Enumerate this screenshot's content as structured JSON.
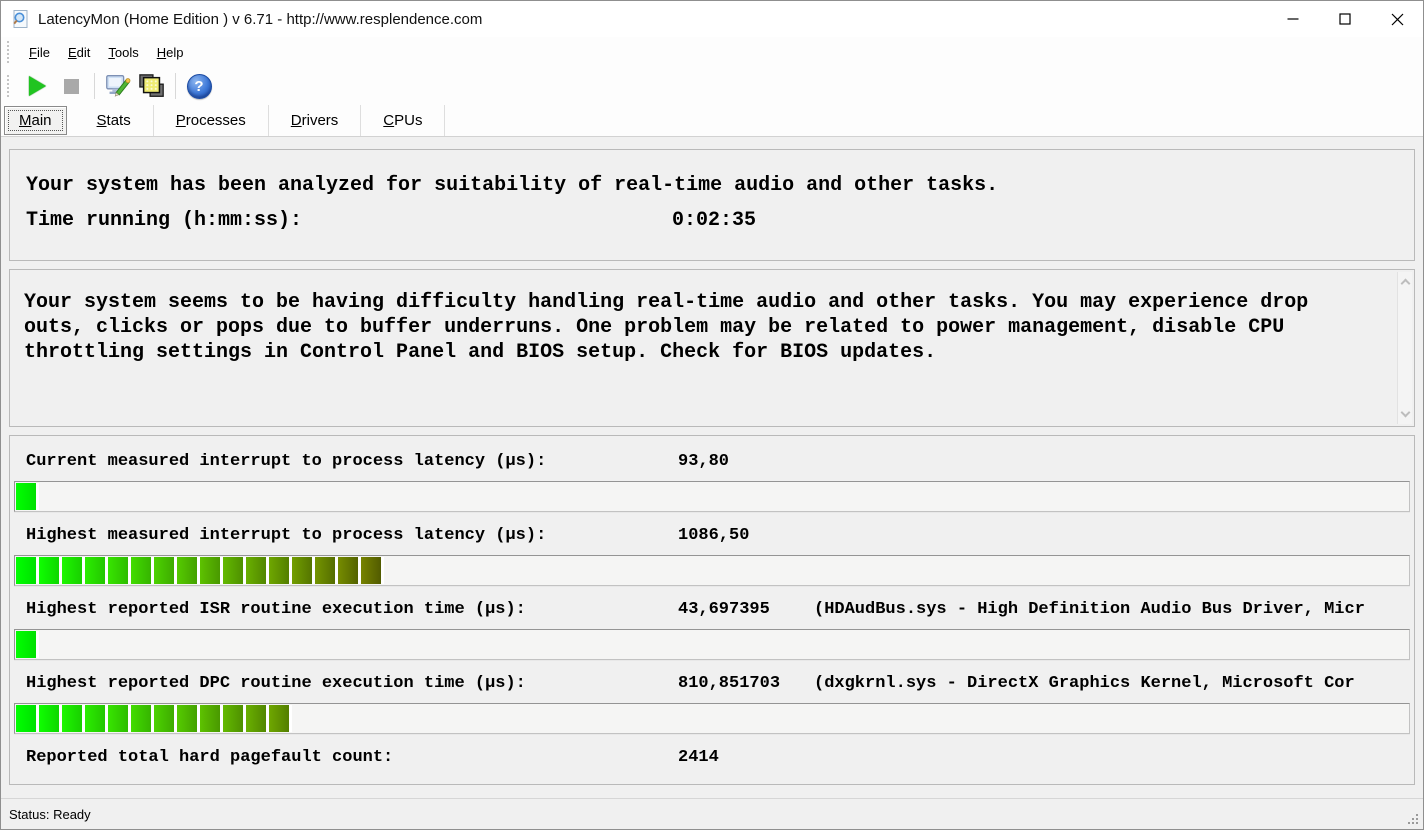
{
  "window": {
    "title": "LatencyMon  (Home Edition )  v 6.71 - http://www.resplendence.com",
    "status": "Status: Ready"
  },
  "menu": {
    "items": [
      "File",
      "Edit",
      "Tools",
      "Help"
    ]
  },
  "toolbar": {
    "buttons": [
      "start-monitor-icon",
      "stop-monitor-icon",
      "options-icon",
      "processes-window-icon",
      "help-icon"
    ]
  },
  "tabs": [
    {
      "label": "Main",
      "active": true
    },
    {
      "label": "Stats",
      "active": false
    },
    {
      "label": "Processes",
      "active": false
    },
    {
      "label": "Drivers",
      "active": false
    },
    {
      "label": "CPUs",
      "active": false
    }
  ],
  "analysis": {
    "heading": "Your system has been analyzed for suitability of real-time audio and other tasks.",
    "time_label": "Time running (h:mm:ss):",
    "time_value": "0:02:35"
  },
  "warning": {
    "lines": [
      "Your system seems to be having difficulty handling real-time audio and other tasks. You may experience drop",
      "outs, clicks or pops due to buffer underruns. One problem may be related to power management, disable CPU",
      "throttling settings in Control Panel and BIOS setup. Check for BIOS updates."
    ]
  },
  "measurements": {
    "bar_style": {
      "hue_start": 120,
      "hue_step": -3.6,
      "light_start": 46,
      "light_step": -1.75,
      "start_color": "#00ea00",
      "end_color": "#5a6600",
      "gap_color": "#ffffff"
    },
    "rows": [
      {
        "label": "Current measured interrupt to process latency (µs):",
        "value": "93,80",
        "extra": "",
        "bar": {
          "segments": 1
        }
      },
      {
        "label": "Highest measured interrupt to process latency (µs):",
        "value": "1086,50",
        "extra": "",
        "bar": {
          "segments": 16
        }
      },
      {
        "label": "Highest reported ISR routine execution time (µs):",
        "value": "43,697395",
        "extra": "(HDAudBus.sys - High Definition Audio Bus Driver, Micr",
        "bar": {
          "segments": 1
        }
      },
      {
        "label": "Highest reported DPC routine execution time (µs):",
        "value": "810,851703",
        "extra": "(dxgkrnl.sys - DirectX Graphics Kernel, Microsoft Cor",
        "bar": {
          "segments": 12
        }
      },
      {
        "label": "Reported total hard pagefault count:",
        "value": "2414",
        "extra": "",
        "bar": null
      }
    ]
  },
  "colors": {
    "accent_green": "#21c421",
    "help_blue": "#3d78d8",
    "window_bg": "#f0f0f0",
    "panel_border": "#b9b9b9",
    "titlebar_bg": "#ffffff"
  }
}
